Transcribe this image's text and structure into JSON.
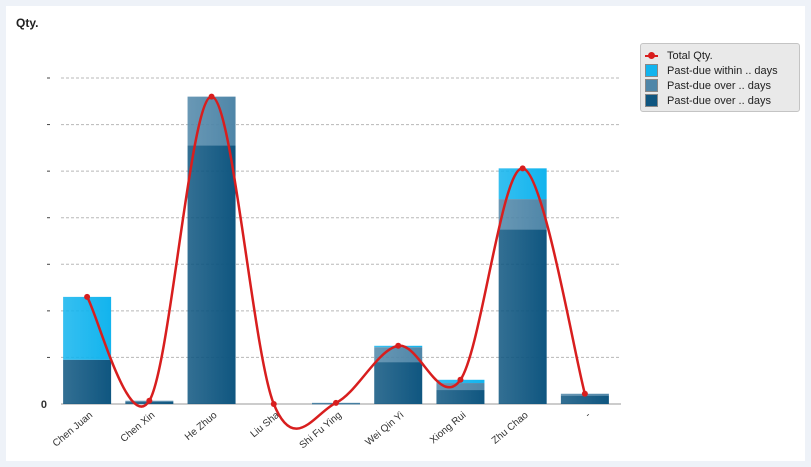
{
  "chart_data": {
    "type": "bar",
    "stacked": true,
    "title": "Qty.",
    "xlabel": "",
    "ylabel": "",
    "categories": [
      "Chen Juan",
      "Chen Xin",
      "He Zhuo",
      "Liu Sha",
      "Shi Fu Ying",
      "Wei Qin Yi",
      "Xiong Rui",
      "Zhu Chao",
      "-"
    ],
    "y_tick_labels": [
      "0"
    ],
    "ylim": [
      0,
      70
    ],
    "grid": true,
    "legend_position": "top-right",
    "series": [
      {
        "name": "Past-due over ... days",
        "color": "#0f5680",
        "values": [
          9.5,
          0.5,
          55.5,
          0,
          0.15,
          9,
          3,
          37.5,
          1.8
        ]
      },
      {
        "name": "Past-due over ... days",
        "color": "#4f86a8",
        "values": [
          0,
          0.2,
          10.5,
          0,
          0.1,
          3.2,
          1.5,
          6.5,
          0.4
        ]
      },
      {
        "name": "Past-due within ... days",
        "color": "#12b4ee",
        "values": [
          13.5,
          0,
          0,
          0,
          0,
          0.3,
          0.7,
          6.6,
          0
        ]
      }
    ],
    "line_series": {
      "name": "Total Qty.",
      "color": "#d81e1e",
      "values": [
        23,
        0.7,
        66,
        0,
        0.25,
        12.5,
        5.2,
        50.6,
        2.2
      ]
    },
    "legend": [
      "Total Qty.",
      "Past-due within .. days",
      "Past-due over .. days",
      "Past-due over .. days"
    ]
  }
}
